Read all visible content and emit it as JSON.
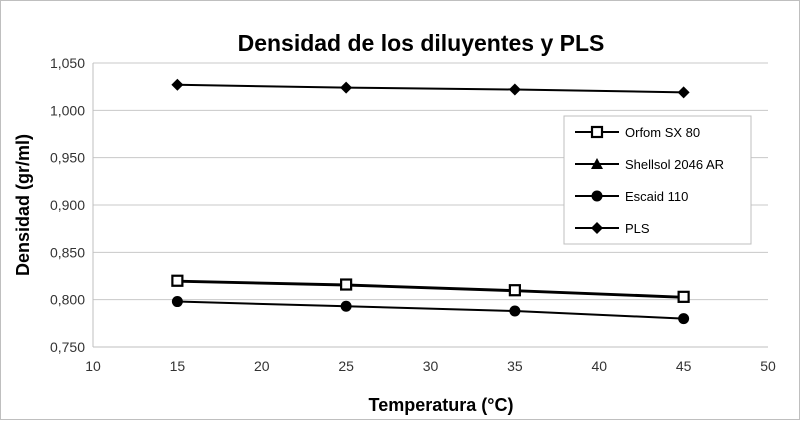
{
  "chart_data": {
    "type": "line",
    "title": "Densidad de los diluyentes y PLS",
    "xlabel": "Temperatura (°C)",
    "ylabel": "Densidad (gr/ml)",
    "xlim": [
      10,
      50
    ],
    "ylim": [
      0.75,
      1.05
    ],
    "xticks": [
      "10",
      "15",
      "20",
      "25",
      "30",
      "35",
      "40",
      "45",
      "50"
    ],
    "yticks": [
      "0,750",
      "0,800",
      "0,850",
      "0,900",
      "0,950",
      "1,000",
      "1,050"
    ],
    "grid": "horizontal",
    "legend_position": "right",
    "x": [
      15,
      25,
      35,
      45
    ],
    "series": [
      {
        "name": "Orfom SX 80",
        "marker": "square-open",
        "values": [
          0.82,
          0.816,
          0.81,
          0.803
        ]
      },
      {
        "name": "Shellsol 2046 AR",
        "marker": "triangle",
        "values": [
          0.819,
          0.815,
          0.809,
          0.802
        ]
      },
      {
        "name": "Escaid 110",
        "marker": "circle",
        "values": [
          0.798,
          0.793,
          0.788,
          0.78
        ]
      },
      {
        "name": "PLS",
        "marker": "diamond",
        "values": [
          1.027,
          1.024,
          1.022,
          1.019
        ]
      }
    ]
  }
}
